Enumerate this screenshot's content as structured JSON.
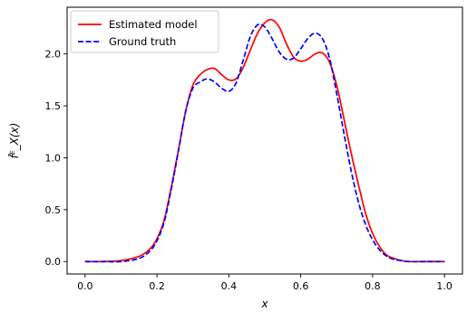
{
  "chart_data": {
    "type": "line",
    "xlabel": "x",
    "ylabel": "f̂ᴱ_X(x)",
    "xlim": [
      -0.05,
      1.05
    ],
    "ylim": [
      -0.12,
      2.45
    ],
    "grid": false,
    "legend_position": "top-left",
    "x_ticks": [
      "0.0",
      "0.2",
      "0.4",
      "0.6",
      "0.8",
      "1.0"
    ],
    "y_ticks": [
      "0.0",
      "0.5",
      "1.0",
      "1.5",
      "2.0"
    ],
    "series": [
      {
        "name": "Estimated model",
        "color": "#ff0000",
        "line_style": "solid",
        "x": [
          0.0,
          0.05,
          0.1,
          0.15,
          0.18,
          0.2,
          0.22,
          0.24,
          0.26,
          0.28,
          0.3,
          0.32,
          0.34,
          0.36,
          0.38,
          0.4,
          0.42,
          0.44,
          0.46,
          0.48,
          0.5,
          0.52,
          0.54,
          0.56,
          0.58,
          0.6,
          0.62,
          0.64,
          0.66,
          0.68,
          0.7,
          0.72,
          0.74,
          0.76,
          0.78,
          0.8,
          0.82,
          0.84,
          0.86,
          0.88,
          0.9,
          0.95,
          1.0
        ],
        "y": [
          0.0,
          0.0,
          0.01,
          0.05,
          0.12,
          0.22,
          0.4,
          0.72,
          1.08,
          1.45,
          1.7,
          1.8,
          1.85,
          1.86,
          1.8,
          1.75,
          1.76,
          1.87,
          2.04,
          2.2,
          2.3,
          2.33,
          2.26,
          2.1,
          1.97,
          1.93,
          1.95,
          2.0,
          2.01,
          1.92,
          1.7,
          1.38,
          1.05,
          0.75,
          0.47,
          0.27,
          0.14,
          0.06,
          0.03,
          0.01,
          0.0,
          0.0,
          0.0
        ]
      },
      {
        "name": "Ground truth",
        "color": "#0000ff",
        "line_style": "dashed",
        "x": [
          0.0,
          0.05,
          0.1,
          0.15,
          0.18,
          0.2,
          0.22,
          0.24,
          0.26,
          0.28,
          0.3,
          0.32,
          0.34,
          0.36,
          0.38,
          0.4,
          0.42,
          0.44,
          0.46,
          0.48,
          0.5,
          0.52,
          0.54,
          0.56,
          0.58,
          0.6,
          0.62,
          0.64,
          0.66,
          0.68,
          0.7,
          0.72,
          0.74,
          0.76,
          0.78,
          0.8,
          0.82,
          0.84,
          0.86,
          0.88,
          0.9,
          0.95,
          1.0
        ],
        "y": [
          0.0,
          0.0,
          0.0,
          0.03,
          0.1,
          0.2,
          0.38,
          0.7,
          1.07,
          1.45,
          1.67,
          1.73,
          1.76,
          1.73,
          1.67,
          1.64,
          1.72,
          1.94,
          2.17,
          2.28,
          2.26,
          2.15,
          2.02,
          1.95,
          1.96,
          2.05,
          2.15,
          2.2,
          2.15,
          1.96,
          1.62,
          1.24,
          0.88,
          0.58,
          0.36,
          0.21,
          0.11,
          0.05,
          0.02,
          0.01,
          0.0,
          0.0,
          0.0
        ]
      }
    ]
  }
}
